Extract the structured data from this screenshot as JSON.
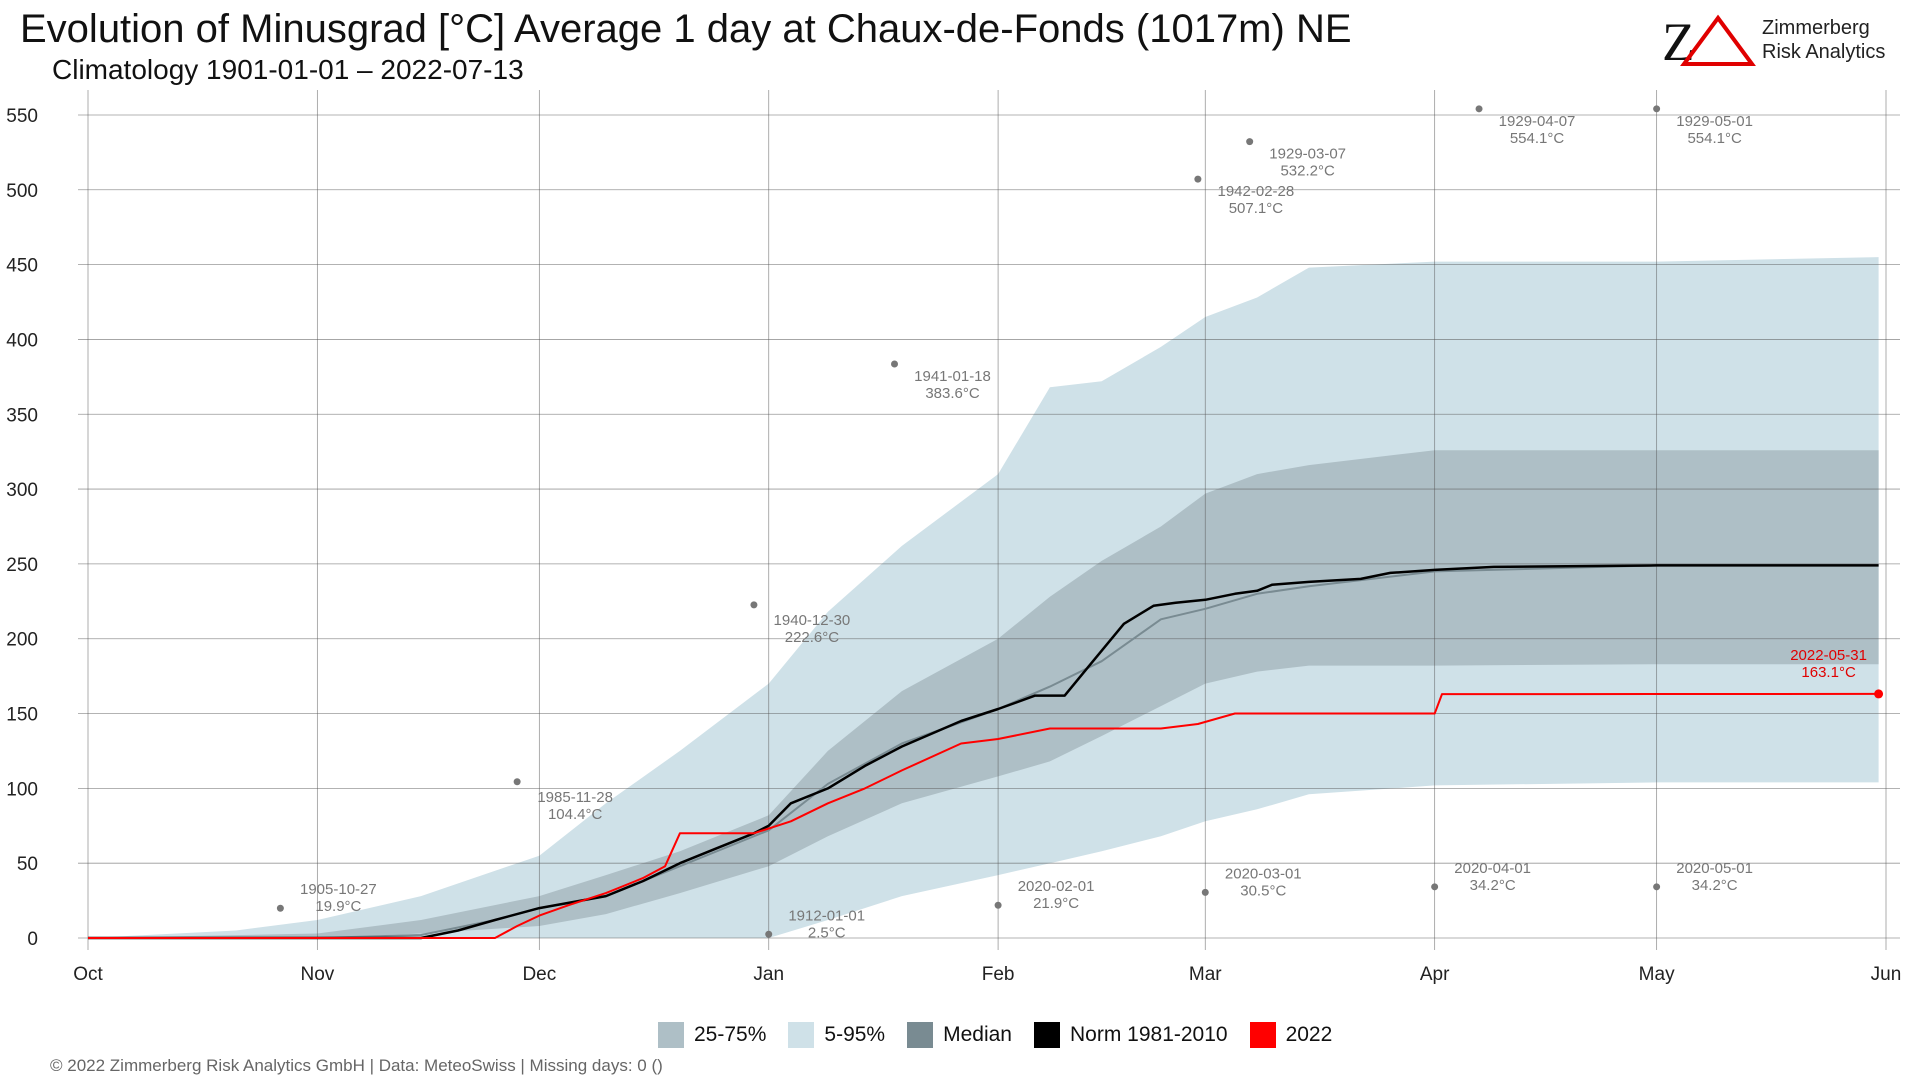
{
  "header": {
    "title": "Evolution of Minusgrad [°C] Average 1 day at Chaux-de-Fonds (1017m) NE",
    "subtitle": "Climatology 1901-01-01 – 2022-07-13"
  },
  "logo": {
    "mark": "ZΔ",
    "line1": "Zimmerberg",
    "line2": "Risk Analytics",
    "mark_color": "#111111",
    "accent_color": "#e00000"
  },
  "legend": {
    "items": [
      {
        "label": "25-75%",
        "color": "#aebfc6"
      },
      {
        "label": "5-95%",
        "color": "#cfe1e8"
      },
      {
        "label": "Median",
        "color": "#798b92"
      },
      {
        "label": "Norm 1981-2010",
        "color": "#000000"
      },
      {
        "label": "2022",
        "color": "#ff0000"
      }
    ]
  },
  "footer": {
    "text": "©  2022 Zimmerberg Risk Analytics GmbH | Data: MeteoSwiss | Missing days: 0 ()"
  },
  "chart_data": {
    "type": "area",
    "x_ticks": [
      "Oct",
      "Nov",
      "Dec",
      "Jan",
      "Feb",
      "Mar",
      "Apr",
      "May",
      "Jun"
    ],
    "x_tick_days": [
      0,
      31,
      61,
      92,
      123,
      151,
      182,
      212,
      243
    ],
    "y_ticks": [
      0,
      50,
      100,
      150,
      200,
      250,
      300,
      350,
      400,
      450,
      500,
      550
    ],
    "ylim": [
      0,
      560
    ],
    "xlim_days": [
      0,
      243
    ],
    "grid": true,
    "legend_position": "bottom",
    "band_5_95": {
      "x_days": [
        0,
        20,
        31,
        45,
        61,
        70,
        80,
        92,
        100,
        110,
        123,
        130,
        137,
        145,
        151,
        158,
        165,
        182,
        212,
        242
      ],
      "lower": [
        0,
        0,
        0,
        0,
        0,
        0,
        0,
        0,
        12,
        28,
        42,
        50,
        58,
        68,
        78,
        86,
        96,
        102,
        104,
        104
      ],
      "upper": [
        0,
        5,
        12,
        28,
        55,
        90,
        125,
        170,
        218,
        262,
        310,
        368,
        372,
        395,
        415,
        428,
        448,
        452,
        452,
        455
      ]
    },
    "band_25_75": {
      "x_days": [
        0,
        31,
        45,
        61,
        70,
        80,
        92,
        100,
        110,
        123,
        130,
        137,
        145,
        151,
        158,
        165,
        182,
        212,
        242
      ],
      "lower": [
        0,
        0,
        3,
        8,
        16,
        30,
        48,
        68,
        90,
        108,
        118,
        135,
        155,
        170,
        178,
        182,
        182,
        183,
        183
      ],
      "upper": [
        0,
        3,
        12,
        28,
        42,
        58,
        82,
        125,
        165,
        200,
        228,
        252,
        275,
        297,
        310,
        316,
        326,
        326,
        326
      ]
    },
    "series": [
      {
        "name": "Median",
        "color": "#798b92",
        "x_days": [
          0,
          31,
          45,
          55,
          61,
          70,
          80,
          92,
          100,
          110,
          123,
          130,
          137,
          145,
          151,
          158,
          165,
          182,
          212,
          242
        ],
        "y": [
          0,
          0,
          2,
          12,
          20,
          28,
          48,
          72,
          103,
          130,
          153,
          168,
          185,
          213,
          220,
          230,
          235,
          245,
          249,
          249
        ]
      },
      {
        "name": "Norm 1981-2010",
        "color": "#000000",
        "x_days": [
          0,
          45,
          50,
          55,
          61,
          70,
          75,
          80,
          85,
          90,
          92,
          95,
          100,
          105,
          110,
          118,
          123,
          128,
          132,
          135,
          140,
          144,
          147,
          151,
          155,
          158,
          160,
          165,
          172,
          176,
          182,
          190,
          212,
          242
        ],
        "y": [
          0,
          0,
          5,
          12,
          20,
          28,
          38,
          50,
          60,
          70,
          75,
          90,
          100,
          115,
          128,
          145,
          153,
          162,
          162,
          180,
          210,
          222,
          224,
          226,
          230,
          232,
          236,
          238,
          240,
          244,
          246,
          248,
          249,
          249
        ]
      },
      {
        "name": "2022",
        "color": "#ff0000",
        "x_days": [
          0,
          55,
          58,
          61,
          65,
          70,
          75,
          78,
          80,
          85,
          90,
          95,
          100,
          105,
          110,
          118,
          123,
          130,
          140,
          145,
          150,
          155,
          172,
          182,
          183,
          200,
          242
        ],
        "y": [
          0,
          0,
          8,
          15,
          22,
          30,
          40,
          48,
          70,
          70,
          70,
          78,
          90,
          100,
          112,
          130,
          133,
          140,
          140,
          140,
          143,
          150,
          150,
          150,
          163,
          163,
          163.1
        ]
      }
    ],
    "record_points": [
      {
        "date": "1905-10-27",
        "value": "19.9°C",
        "x_day": 26,
        "y": 19.9
      },
      {
        "date": "1985-11-28",
        "value": "104.4°C",
        "x_day": 58,
        "y": 104.4
      },
      {
        "date": "1912-01-01",
        "value": "2.5°C",
        "x_day": 92,
        "y": 2.5
      },
      {
        "date": "1940-12-30",
        "value": "222.6°C",
        "x_day": 90,
        "y": 222.6
      },
      {
        "date": "1941-01-18",
        "value": "383.6°C",
        "x_day": 109,
        "y": 383.6
      },
      {
        "date": "2020-02-01",
        "value": "21.9°C",
        "x_day": 123,
        "y": 21.9
      },
      {
        "date": "1942-02-28",
        "value": "507.1°C",
        "x_day": 150,
        "y": 507.1
      },
      {
        "date": "2020-03-01",
        "value": "30.5°C",
        "x_day": 151,
        "y": 30.5
      },
      {
        "date": "1929-03-07",
        "value": "532.2°C",
        "x_day": 157,
        "y": 532.2
      },
      {
        "date": "2020-04-01",
        "value": "34.2°C",
        "x_day": 182,
        "y": 34.2
      },
      {
        "date": "1929-04-07",
        "value": "554.1°C",
        "x_day": 188,
        "y": 554.1
      },
      {
        "date": "2020-05-01",
        "value": "34.2°C",
        "x_day": 212,
        "y": 34.2
      },
      {
        "date": "1929-05-01",
        "value": "554.1°C",
        "x_day": 212,
        "y": 554.1
      }
    ],
    "current_point": {
      "date": "2022-05-31",
      "value": "163.1°C",
      "x_day": 242,
      "y": 163.1
    }
  }
}
